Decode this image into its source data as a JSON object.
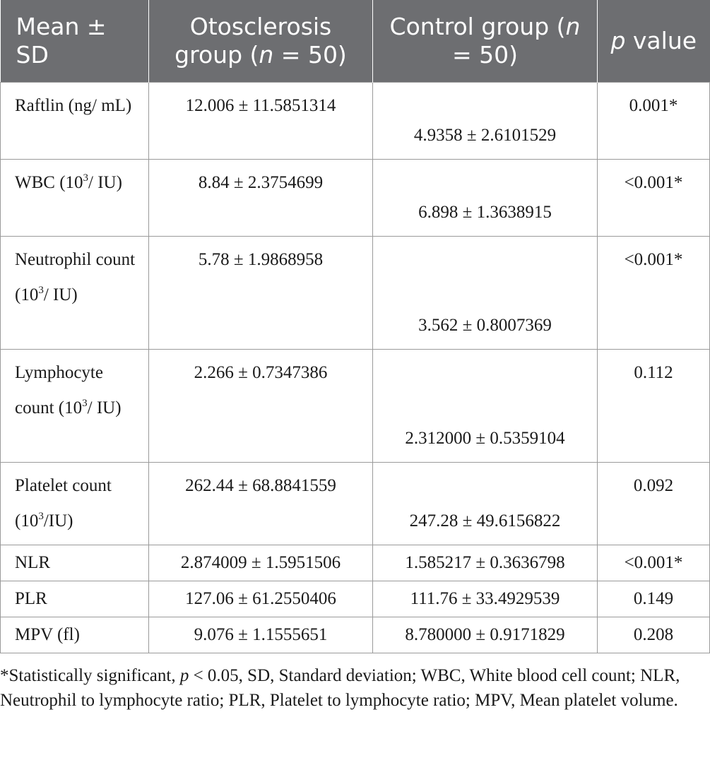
{
  "header": {
    "col1": "Mean ± SD",
    "col2_a": "Otosclerosis group (",
    "col2_n": "n",
    "col2_b": " = 50)",
    "col3_a": "Control group (",
    "col3_n": "n",
    "col3_b": " = 50)",
    "col4_p": "p",
    "col4_b": " value"
  },
  "rows": [
    {
      "label": "Raftlin (ng/ mL)",
      "oto": "12.006 ± 11.5851314",
      "ctrl": "4.9358 ± 2.6101529",
      "p": "0.001*"
    },
    {
      "label_pre": "WBC (10",
      "label_sup": "3",
      "label_post": "/ IU)",
      "oto": "8.84 ± 2.3754699",
      "ctrl": "6.898 ± 1.3638915",
      "p": "<0.001*"
    },
    {
      "label_pre": "Neutrophil count (10",
      "label_sup": "3",
      "label_post": "/ IU)",
      "oto": "5.78 ± 1.9868958",
      "ctrl": "3.562 ± 0.8007369",
      "p": "<0.001*"
    },
    {
      "label_pre": "Lymphocyte count (10",
      "label_sup": "3",
      "label_post": "/ IU)",
      "oto": "2.266 ± 0.7347386",
      "ctrl": "2.312000 ± 0.5359104",
      "p": "0.112"
    },
    {
      "label_pre": "Platelet count (10",
      "label_sup": "3",
      "label_post": "/IU)",
      "oto": "262.44 ± 68.8841559",
      "ctrl": "247.28 ± 49.6156822",
      "p": "0.092"
    },
    {
      "label": "NLR",
      "oto": "2.874009 ± 1.5951506",
      "ctrl": "1.585217 ± 0.3636798",
      "p": "<0.001*"
    },
    {
      "label": "PLR",
      "oto": "127.06 ± 61.2550406",
      "ctrl": "111.76 ± 33.4929539",
      "p": "0.149"
    },
    {
      "label": "MPV (fl)",
      "oto": "9.076 ± 1.1555651",
      "ctrl": "8.780000 ± 0.9171829",
      "p": "0.208"
    }
  ],
  "footnote": {
    "a": "*Statistically significant, ",
    "p": "p",
    "b": " < 0.05, SD, Standard deviation; WBC, White blood cell count; NLR, Neutrophil to lymphocyte ratio; PLR, Platelet to lymphocyte ratio; MPV, Mean platelet volume."
  }
}
